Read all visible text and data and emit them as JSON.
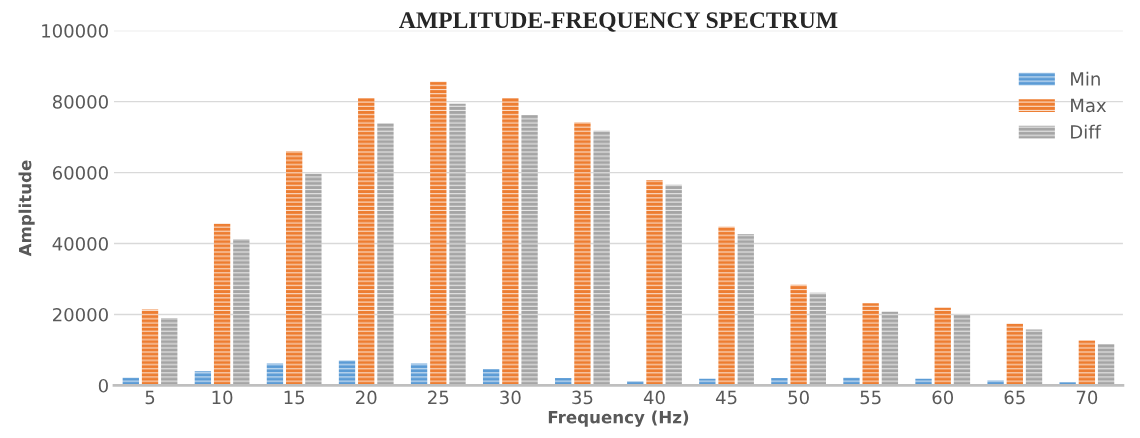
{
  "chart_data": {
    "type": "bar",
    "title": "AMPLITUDE-FREQUENCY SPECTRUM",
    "xlabel": "Frequency (Hz)",
    "ylabel": "Amplitude",
    "categories": [
      "5",
      "10",
      "15",
      "20",
      "25",
      "30",
      "35",
      "40",
      "45",
      "50",
      "55",
      "60",
      "65",
      "70"
    ],
    "series": [
      {
        "name": "Min",
        "color": "#5b9bd5",
        "values": [
          2200,
          4000,
          6200,
          7000,
          6200,
          4600,
          2100,
          1200,
          1900,
          2100,
          2200,
          1900,
          1400,
          900
        ]
      },
      {
        "name": "Max",
        "color": "#ed7d31",
        "values": [
          21400,
          45600,
          66000,
          81000,
          85600,
          81000,
          74100,
          57900,
          44700,
          28400,
          23200,
          21900,
          17400,
          12700
        ]
      },
      {
        "name": "Diff",
        "color": "#a5a5a5",
        "values": [
          19000,
          41200,
          59700,
          73900,
          79400,
          76200,
          71800,
          56600,
          42700,
          26100,
          20800,
          19900,
          15800,
          11700
        ]
      }
    ],
    "ylim": [
      0,
      100000
    ],
    "yticks": [
      0,
      20000,
      40000,
      60000,
      80000,
      100000
    ],
    "grid": "y",
    "legend": "top right"
  }
}
